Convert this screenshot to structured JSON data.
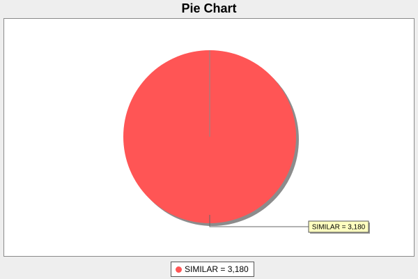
{
  "chart_data": {
    "type": "pie",
    "title": "Pie Chart",
    "slices": [
      {
        "label": "SIMILAR",
        "value": 3180,
        "display": "SIMILAR = 3,180",
        "color": "#ff5555"
      }
    ],
    "legend": {
      "position": "bottom",
      "entries": [
        "SIMILAR = 3,180"
      ]
    }
  }
}
